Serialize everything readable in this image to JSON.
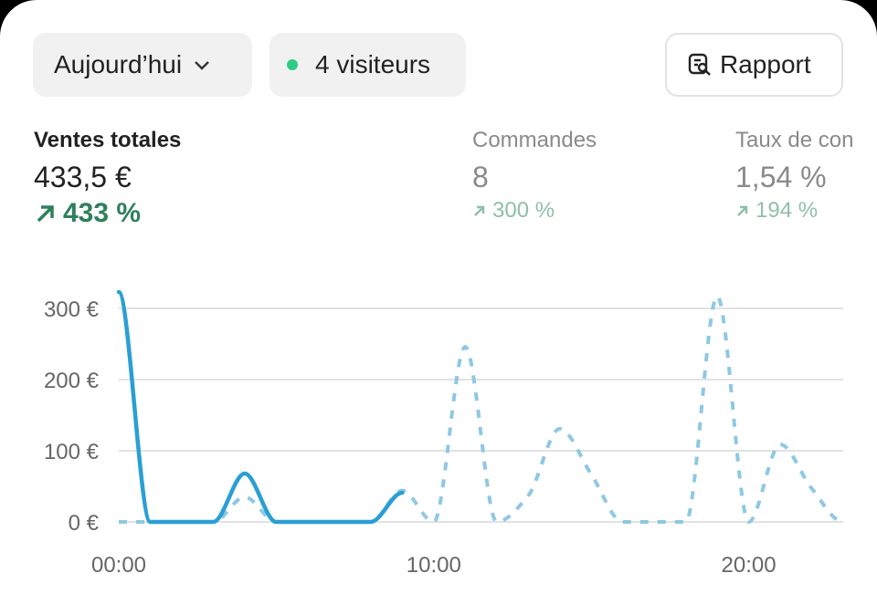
{
  "header": {
    "period": "Aujourd’hui",
    "visitors": "4 visiteurs",
    "report": "Rapport"
  },
  "metrics": [
    {
      "label": "Ventes totales",
      "value": "433,5 €",
      "change": "433 %"
    },
    {
      "label": "Commandes",
      "value": "8",
      "change": "300 %"
    },
    {
      "label": "Taux de con",
      "value": "1,54 %",
      "change": "194 %"
    }
  ],
  "chart_data": {
    "type": "line",
    "categories": [
      "00:00",
      null,
      null,
      null,
      null,
      null,
      null,
      null,
      null,
      null,
      "10:00",
      null,
      null,
      null,
      null,
      null,
      null,
      null,
      null,
      null,
      "20:00",
      null,
      null,
      null
    ],
    "series": [
      {
        "color": "#8ec8e3",
        "dashed": true,
        "values": [
          0,
          0,
          0,
          0,
          35,
          0,
          0,
          0,
          0,
          44,
          0,
          246,
          0,
          37,
          131,
          67,
          0,
          0,
          0,
          317,
          0,
          109,
          47,
          0
        ]
      },
      {
        "color": "#2a9fd4",
        "dashed": false,
        "values": [
          323,
          0,
          0,
          0,
          68,
          0,
          0,
          0,
          0,
          41,
          null,
          null,
          null,
          null,
          null,
          null,
          null,
          null,
          null,
          null,
          null,
          null,
          null,
          null
        ]
      }
    ],
    "ylim": [
      0,
      330
    ],
    "yticks": [
      {
        "value": 0,
        "label": "0 €"
      },
      {
        "value": 100,
        "label": "100 €"
      },
      {
        "value": 200,
        "label": "200 €"
      },
      {
        "value": 300,
        "label": "300 €"
      }
    ],
    "grid": true
  }
}
